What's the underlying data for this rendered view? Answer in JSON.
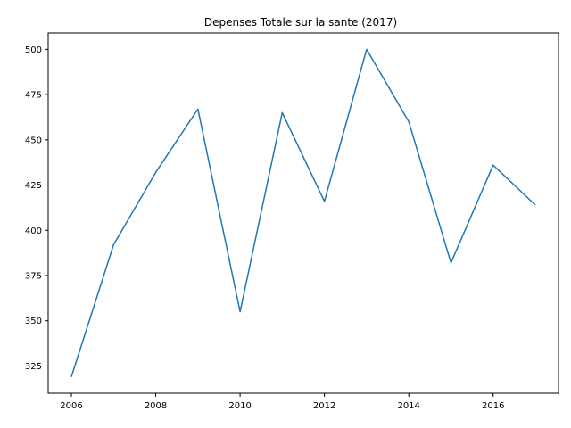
{
  "chart_data": {
    "type": "line",
    "title": "Depenses Totale sur la sante (2017)",
    "xlabel": "",
    "ylabel": "",
    "x": [
      2006,
      2007,
      2008,
      2009,
      2010,
      2011,
      2012,
      2013,
      2014,
      2015,
      2016,
      2017
    ],
    "series": [
      {
        "values": [
          319,
          392,
          432,
          467,
          355,
          465,
          416,
          500,
          460,
          382,
          436,
          414
        ],
        "color": "#1f77b4"
      }
    ],
    "xlim": [
      2005.45,
      2017.55
    ],
    "ylim": [
      309.95,
      509.05
    ],
    "xticks": [
      2006,
      2008,
      2010,
      2012,
      2014,
      2016
    ],
    "yticks": [
      325,
      350,
      375,
      400,
      425,
      450,
      475,
      500
    ],
    "grid": false,
    "legend": "none"
  }
}
